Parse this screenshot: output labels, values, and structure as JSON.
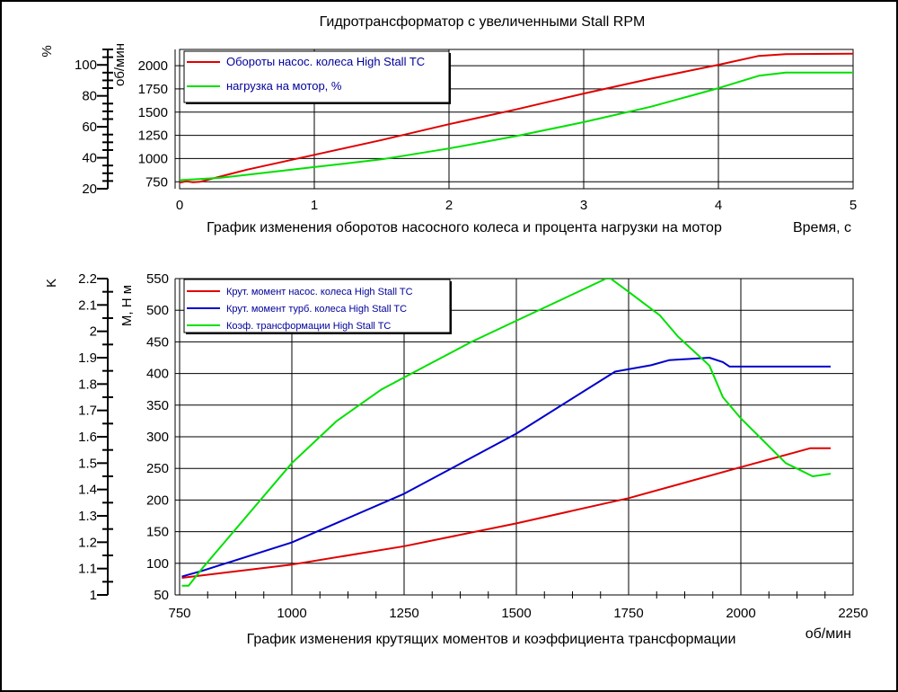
{
  "page": {
    "title": "Гидротрансформатор с увеличенными Stall RPM"
  },
  "colors": {
    "red": "#e00000",
    "blue": "#0000cc",
    "green": "#00e000",
    "legend_text": "#000099"
  },
  "chart_data": [
    {
      "type": "line",
      "caption": "График изменения оборотов насосного колеса и процента нагрузки на мотор",
      "xlabel": "Время, с",
      "xlim": [
        0,
        5
      ],
      "xticks": [
        0,
        1,
        2,
        3,
        4,
        5
      ],
      "axes": [
        {
          "label": "%",
          "range": [
            20,
            110
          ],
          "ticks": [
            20,
            40,
            60,
            80,
            100
          ],
          "minor_step": 5
        },
        {
          "label": "об/мин",
          "range": [
            675,
            2175
          ],
          "ticks": [
            750,
            1000,
            1250,
            1500,
            1750,
            2000
          ]
        }
      ],
      "grid": true,
      "legend_position": "top-left",
      "series": [
        {
          "name": "Обороты насос. колеса High Stall TC",
          "color": "red",
          "axis": 1,
          "x": [
            0,
            0.05,
            0.1,
            0.15,
            0.5,
            1.0,
            1.5,
            2.0,
            2.5,
            3.0,
            3.5,
            4.0,
            4.3,
            4.5,
            5.0
          ],
          "y": [
            740,
            755,
            745,
            750,
            880,
            1040,
            1200,
            1370,
            1530,
            1700,
            1860,
            2010,
            2105,
            2125,
            2130
          ]
        },
        {
          "name": "нагрузка на мотор, %",
          "color": "green",
          "axis": 0,
          "x": [
            0,
            0.3,
            0.5,
            1.0,
            1.5,
            2.0,
            2.5,
            3.0,
            3.5,
            4.0,
            4.3,
            4.5,
            5.0
          ],
          "y": [
            25.5,
            27,
            29,
            34,
            39,
            46,
            54,
            63,
            73,
            85,
            93,
            95,
            95
          ]
        }
      ]
    },
    {
      "type": "line",
      "caption": "График изменения крутящих моментов и коэффициента трансформации",
      "xlabel": "об/мин",
      "xlim": [
        750,
        2250
      ],
      "xticks": [
        750,
        1000,
        1250,
        1500,
        1750,
        2000,
        2250
      ],
      "axes": [
        {
          "label": "K",
          "range": [
            1,
            2.2
          ],
          "ticks": [
            1,
            1.1,
            1.2,
            1.3,
            1.4,
            1.5,
            1.6,
            1.7,
            1.8,
            1.9,
            2,
            2.1,
            2.2
          ],
          "minor_step": 0.05
        },
        {
          "label": "М, Н м",
          "range": [
            50,
            550
          ],
          "ticks": [
            50,
            100,
            150,
            200,
            250,
            300,
            350,
            400,
            450,
            500,
            550
          ]
        }
      ],
      "grid": true,
      "legend_position": "top-left",
      "series": [
        {
          "name": "Крут. момент насос. колеса High Stall TC",
          "color": "red",
          "axis": 1,
          "x": [
            755,
            1000,
            1250,
            1500,
            1750,
            2000,
            2155,
            2200
          ],
          "y": [
            77,
            98,
            127,
            163,
            203,
            252,
            282,
            282
          ]
        },
        {
          "name": "Крут. момент турб. колеса High Stall TC",
          "color": "blue",
          "axis": 1,
          "x": [
            755,
            800,
            1000,
            1250,
            1500,
            1720,
            1800,
            1840,
            1930,
            1960,
            1975,
            2000,
            2200
          ],
          "y": [
            79,
            88,
            133,
            210,
            305,
            403,
            413,
            421,
            425,
            418,
            411,
            411,
            411
          ]
        },
        {
          "name": "Коэф. трансформации High Stall TC",
          "color": "green",
          "axis": 0,
          "x": [
            755,
            770,
            800,
            900,
            1000,
            1100,
            1200,
            1300,
            1400,
            1500,
            1600,
            1700,
            1710,
            1750,
            1820,
            1860,
            1930,
            1960,
            2000,
            2100,
            2160,
            2200
          ],
          "y": [
            1.035,
            1.035,
            1.1,
            1.3,
            1.5,
            1.66,
            1.78,
            1.87,
            1.96,
            2.04,
            2.12,
            2.2,
            2.2,
            2.15,
            2.06,
            1.98,
            1.87,
            1.75,
            1.67,
            1.5,
            1.45,
            1.46
          ]
        }
      ]
    }
  ]
}
